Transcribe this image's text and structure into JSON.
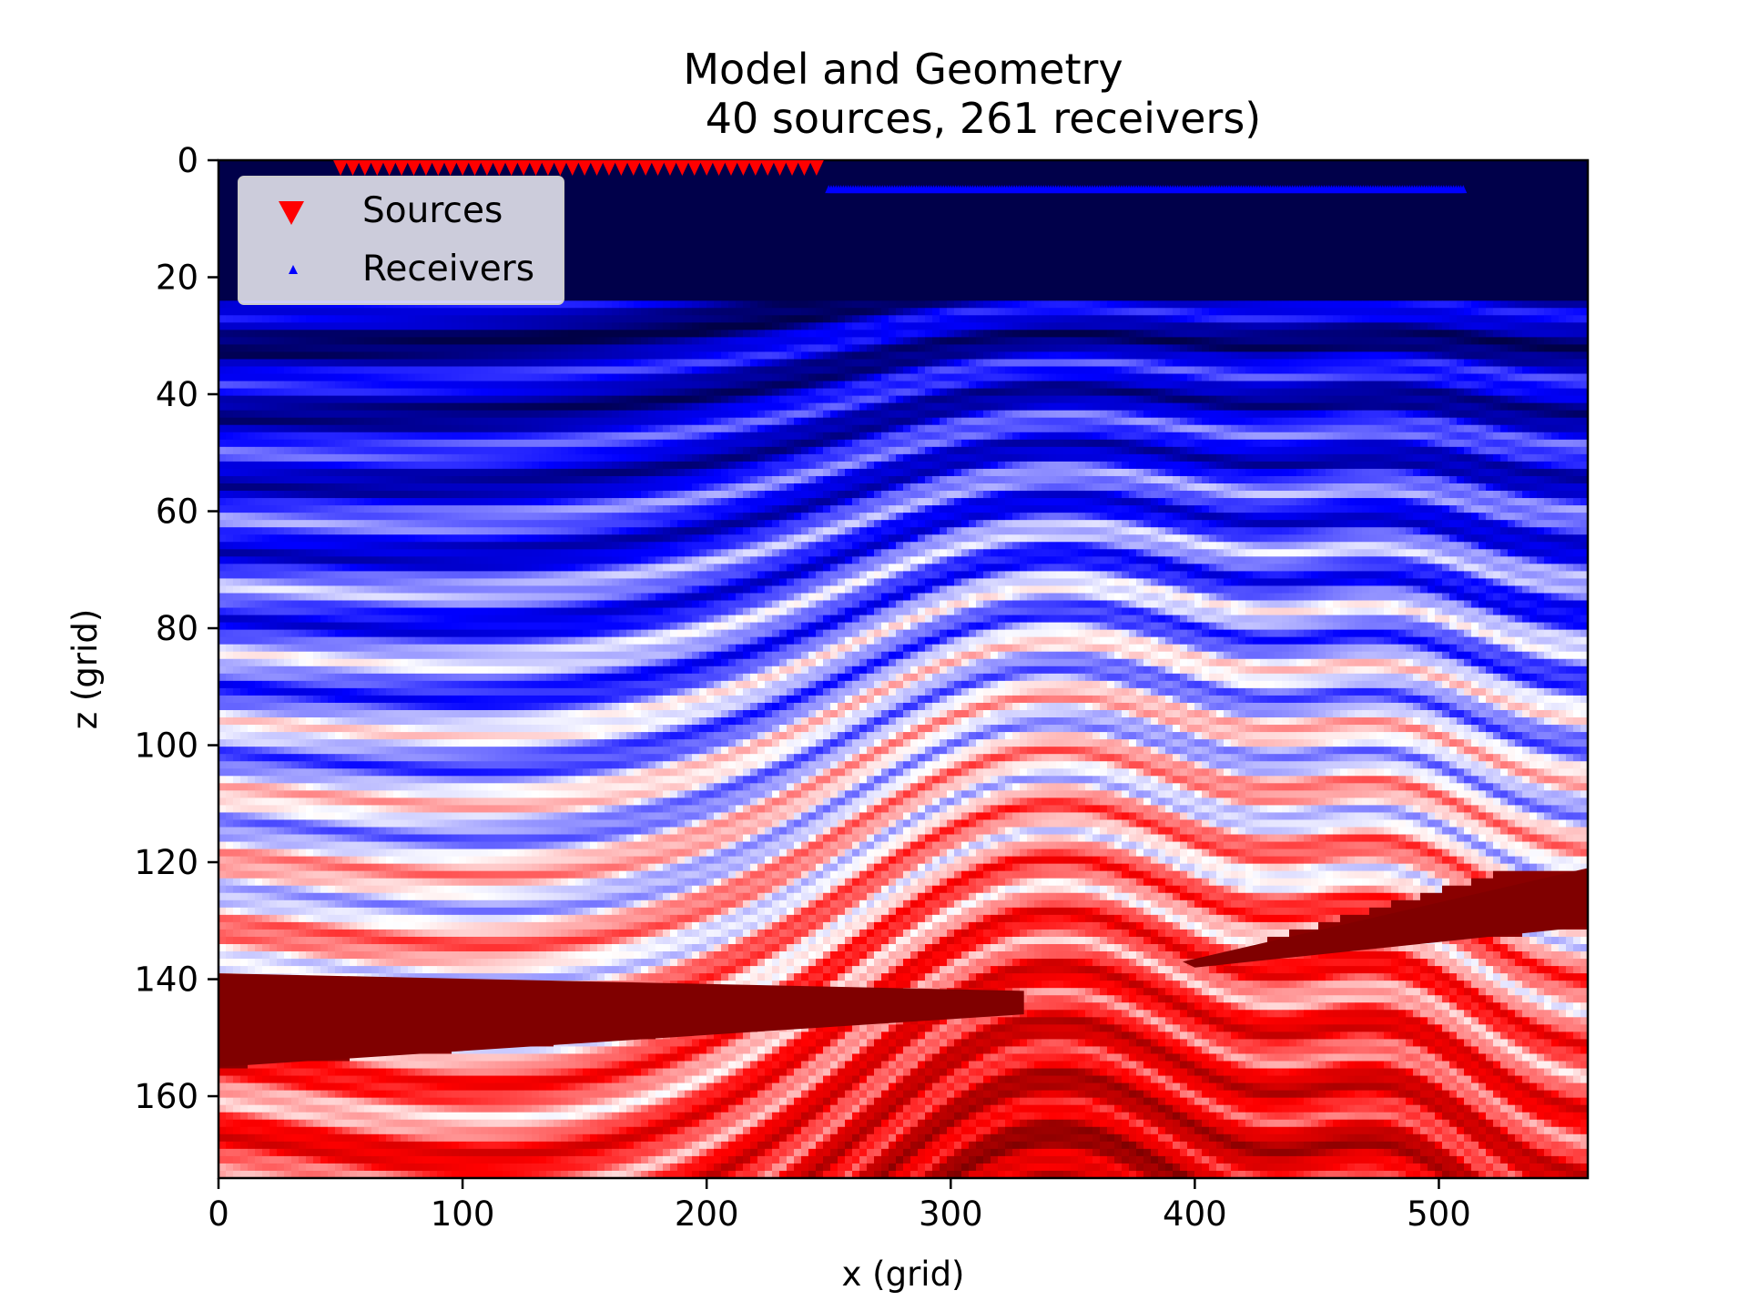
{
  "chart_data": {
    "type": "heatmap",
    "title_line1": "Model and Geometry",
    "title_line2": "40 sources, 261 receivers)",
    "xlabel": "x (grid)",
    "ylabel": "z (grid)",
    "xlim": [
      0,
      561
    ],
    "ylim": [
      174,
      0
    ],
    "y_inverted": true,
    "xticks": [
      0,
      100,
      200,
      300,
      400,
      500
    ],
    "yticks": [
      0,
      20,
      40,
      60,
      80,
      100,
      120,
      140,
      160
    ],
    "colormap": "seismic",
    "grid": false,
    "legend": {
      "placement": "top-left",
      "entries": [
        {
          "label": "Sources",
          "marker": "triangle-down",
          "color": "#ff0000"
        },
        {
          "label": "Receivers",
          "marker": "triangle-up",
          "color": "#0000ff"
        }
      ]
    },
    "sources": {
      "count": 40,
      "x_start": 50,
      "x_end": 245,
      "z": 2
    },
    "receivers": {
      "count": 261,
      "x_start": 250,
      "x_end": 510,
      "z": 5
    },
    "water_layer_bottom_z": 24
  }
}
